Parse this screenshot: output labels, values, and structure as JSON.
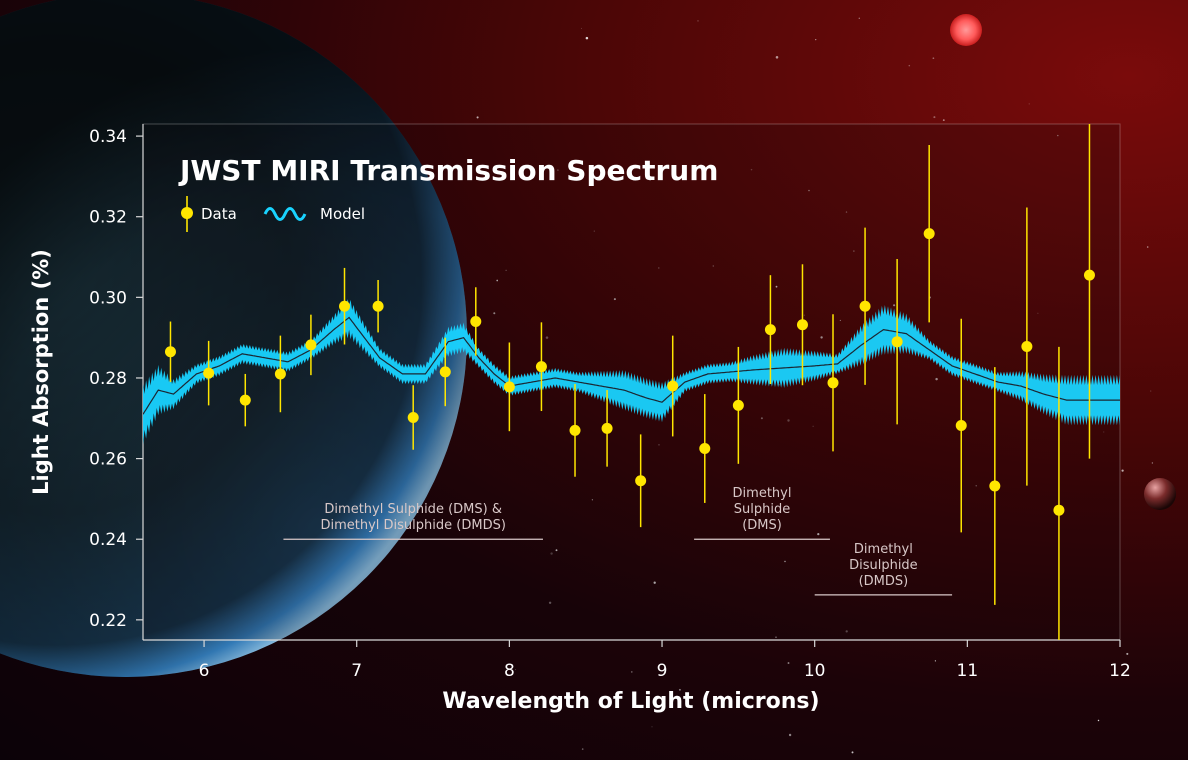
{
  "chart_data": {
    "type": "scatter",
    "title": "JWST MIRI Transmission Spectrum",
    "xlabel": "Wavelength of Light (microns)",
    "ylabel": "Light Absorption (%)",
    "xlim": [
      5.6,
      12.0
    ],
    "ylim": [
      0.215,
      0.343
    ],
    "x_ticks": [
      "6",
      "7",
      "8",
      "9",
      "10",
      "11",
      "12"
    ],
    "y_ticks": [
      "0.22",
      "0.24",
      "0.26",
      "0.28",
      "0.30",
      "0.32",
      "0.34"
    ],
    "legend": {
      "position": "top-left",
      "entries": [
        "Data",
        "Model"
      ]
    },
    "colors": {
      "data": "#ffe600",
      "model": "#19d3ff",
      "model_line": "#1b2733",
      "axis": "#d9d9d9",
      "annotation": "#d8c8c8"
    },
    "series": [
      {
        "name": "Data",
        "type": "errorbar",
        "x": [
          5.78,
          6.03,
          6.27,
          6.5,
          6.7,
          6.92,
          7.14,
          7.37,
          7.58,
          7.78,
          8.0,
          8.21,
          8.43,
          8.64,
          8.86,
          9.07,
          9.28,
          9.5,
          9.71,
          9.92,
          10.12,
          10.33,
          10.54,
          10.75,
          10.96,
          11.18,
          11.39,
          11.6,
          11.8
        ],
        "y": [
          0.2865,
          0.2812,
          0.2745,
          0.281,
          0.2882,
          0.2978,
          0.2978,
          0.2702,
          0.2815,
          0.294,
          0.2778,
          0.2828,
          0.267,
          0.2675,
          0.2545,
          0.278,
          0.2625,
          0.2732,
          0.292,
          0.2932,
          0.2788,
          0.2978,
          0.289,
          0.3158,
          0.2682,
          0.2532,
          0.2878,
          0.2472,
          0.3055
        ],
        "yerr": [
          0.0075,
          0.008,
          0.0065,
          0.0095,
          0.0075,
          0.0095,
          0.0065,
          0.008,
          0.0085,
          0.0085,
          0.011,
          0.011,
          0.0115,
          0.0095,
          0.0115,
          0.0125,
          0.0135,
          0.0145,
          0.0135,
          0.015,
          0.017,
          0.0195,
          0.0205,
          0.022,
          0.0265,
          0.0295,
          0.0345,
          0.0405,
          0.0455
        ]
      },
      {
        "name": "Model",
        "type": "band",
        "x": [
          5.6,
          5.7,
          5.8,
          5.95,
          6.1,
          6.25,
          6.4,
          6.55,
          6.7,
          6.85,
          6.95,
          7.05,
          7.15,
          7.3,
          7.45,
          7.6,
          7.7,
          7.8,
          7.9,
          8.0,
          8.15,
          8.3,
          8.45,
          8.6,
          8.75,
          8.9,
          9.0,
          9.15,
          9.3,
          9.45,
          9.6,
          9.8,
          10.0,
          10.15,
          10.3,
          10.45,
          10.6,
          10.75,
          10.9,
          11.05,
          11.2,
          11.35,
          11.5,
          11.65,
          11.8,
          12.0
        ],
        "y_center": [
          0.271,
          0.277,
          0.276,
          0.281,
          0.283,
          0.286,
          0.285,
          0.284,
          0.287,
          0.292,
          0.295,
          0.29,
          0.285,
          0.281,
          0.281,
          0.289,
          0.29,
          0.285,
          0.281,
          0.278,
          0.279,
          0.28,
          0.279,
          0.278,
          0.277,
          0.275,
          0.274,
          0.279,
          0.281,
          0.2815,
          0.282,
          0.2825,
          0.283,
          0.2835,
          0.288,
          0.292,
          0.291,
          0.287,
          0.283,
          0.281,
          0.279,
          0.278,
          0.276,
          0.2745,
          0.2745,
          0.2745
        ],
        "y_halfwidth": [
          0.006,
          0.005,
          0.003,
          0.002,
          0.002,
          0.002,
          0.002,
          0.002,
          0.002,
          0.003,
          0.004,
          0.003,
          0.002,
          0.002,
          0.002,
          0.003,
          0.003,
          0.002,
          0.002,
          0.002,
          0.002,
          0.002,
          0.002,
          0.003,
          0.004,
          0.004,
          0.004,
          0.002,
          0.002,
          0.002,
          0.003,
          0.004,
          0.003,
          0.002,
          0.004,
          0.005,
          0.004,
          0.002,
          0.002,
          0.002,
          0.002,
          0.003,
          0.004,
          0.005,
          0.005,
          0.005
        ]
      }
    ],
    "annotations": [
      {
        "lines": [
          "Dimethyl Sulphide (DMS) &",
          "Dimethyl Disulphide (DMDS)"
        ],
        "x_range": [
          6.52,
          8.22
        ],
        "y": 0.24
      },
      {
        "lines": [
          "Dimethyl",
          "Sulphide",
          "(DMS)"
        ],
        "x_range": [
          9.21,
          10.1
        ],
        "y": 0.24
      },
      {
        "lines": [
          "Dimethyl",
          "Disulphide",
          "(DMDS)"
        ],
        "x_range": [
          10.0,
          10.9
        ],
        "y": 0.2262
      }
    ]
  }
}
